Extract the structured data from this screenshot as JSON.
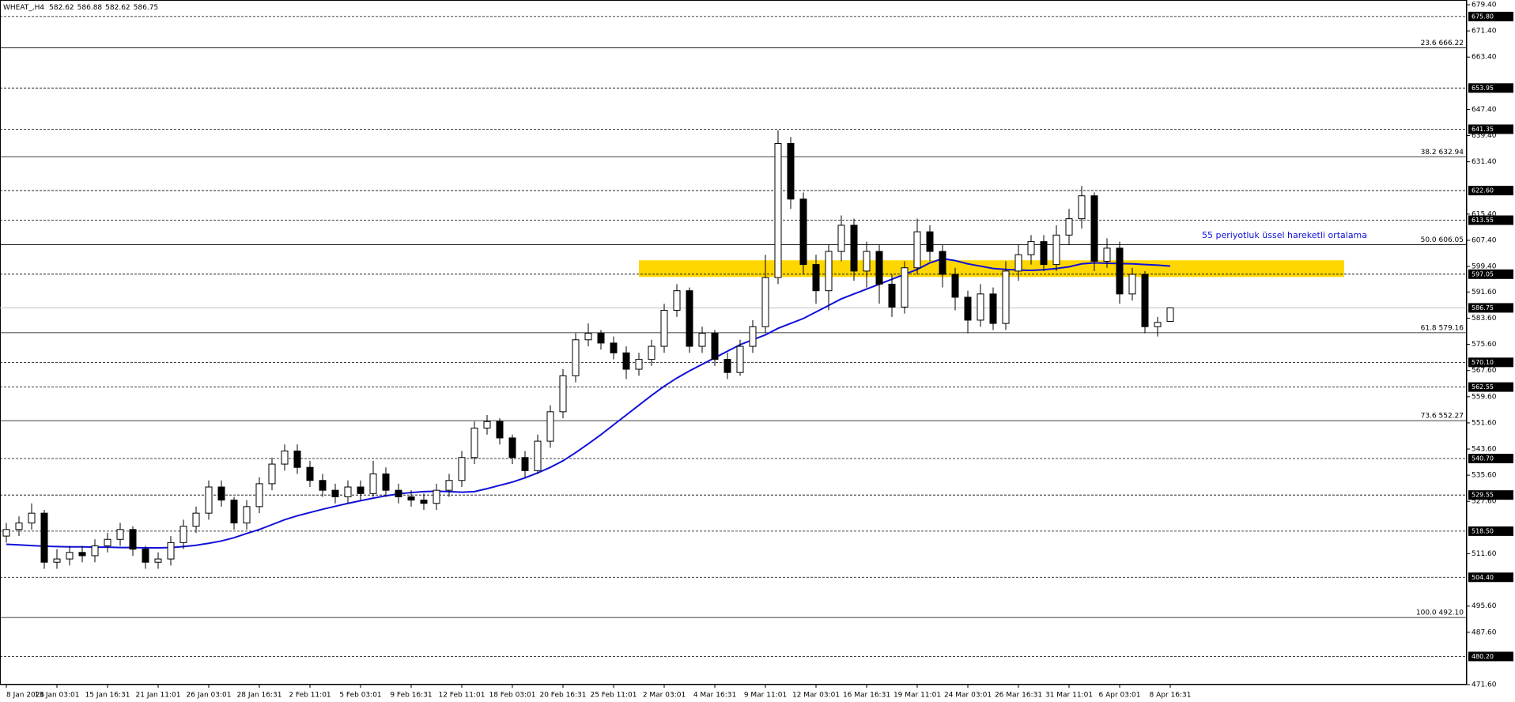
{
  "chart_data": {
    "type": "candlestick",
    "title": "WHEAT_,H4",
    "annotation": "55 periyotluk üssel hareketli ortalama",
    "categories": [
      "8 Jan 2026",
      null,
      null,
      null,
      "13 Jan 03:01",
      null,
      null,
      null,
      "15 Jan 16:31",
      null,
      null,
      null,
      "21 Jan 11:01",
      null,
      null,
      null,
      "26 Jan 03:01",
      null,
      null,
      null,
      "28 Jan 16:31",
      null,
      null,
      null,
      "2 Feb 11:01",
      null,
      null,
      null,
      "5 Feb 03:01",
      null,
      null,
      null,
      "9 Feb 16:31",
      null,
      null,
      null,
      "12 Feb 11:01",
      null,
      null,
      null,
      "18 Feb 03:01",
      null,
      null,
      null,
      "20 Feb 16:31",
      null,
      null,
      null,
      "25 Feb 11:01",
      null,
      null,
      null,
      "2 Mar 03:01",
      null,
      null,
      null,
      "4 Mar 16:31",
      null,
      null,
      null,
      "9 Mar 11:01",
      null,
      null,
      null,
      "12 Mar 03:01",
      null,
      null,
      null,
      "16 Mar 16:31",
      null,
      null,
      null,
      "19 Mar 11:01",
      null,
      null,
      null,
      "24 Mar 03:01",
      null,
      null,
      null,
      "26 Mar 16:31",
      null,
      null,
      null,
      "31 Mar 11:01",
      null,
      null,
      null,
      "6 Apr 03:01",
      null,
      null,
      null,
      "8 Apr 16:31"
    ],
    "open": [
      517,
      519,
      521,
      524,
      509,
      510,
      512,
      511,
      514,
      516,
      519,
      513,
      509,
      510,
      515,
      520,
      524,
      532,
      528,
      521,
      526,
      533,
      539,
      543,
      538,
      534,
      531,
      529,
      532,
      530,
      536,
      531,
      529,
      528,
      527,
      531,
      534,
      541,
      550,
      552,
      547,
      541,
      537,
      546,
      555,
      566,
      577,
      579,
      576,
      573,
      568,
      571,
      575,
      586,
      592,
      575,
      579,
      571,
      567,
      575,
      581,
      596,
      637,
      620,
      600,
      592,
      604,
      612,
      598,
      604,
      594,
      587,
      599,
      610,
      604,
      597,
      590,
      583,
      591,
      582,
      598,
      603,
      607,
      600,
      609,
      614,
      621,
      601,
      605,
      591,
      597,
      581,
      582.62
    ],
    "high": [
      521,
      523,
      527,
      525,
      513,
      514,
      514,
      516,
      518,
      521,
      520,
      514,
      512,
      517,
      522,
      526,
      534,
      534,
      529,
      528,
      535,
      541,
      545,
      545,
      540,
      536,
      533,
      534,
      534,
      540,
      538,
      533,
      531,
      530,
      533,
      536,
      543,
      552,
      554,
      553,
      548,
      543,
      548,
      557,
      568,
      579,
      582,
      580,
      578,
      575,
      573,
      577,
      588,
      594,
      593,
      581,
      580,
      573,
      577,
      583,
      603,
      641,
      639,
      622,
      603,
      606,
      615,
      614,
      607,
      606,
      597,
      601,
      614,
      612,
      606,
      599,
      592,
      594,
      593,
      601,
      606,
      609,
      609,
      612,
      617,
      624,
      622,
      608,
      607,
      599,
      598,
      584,
      586.88
    ],
    "low": [
      515,
      517,
      519,
      507,
      507,
      508,
      509,
      509,
      512,
      514,
      511,
      507,
      507,
      508,
      513,
      518,
      522,
      526,
      519,
      519,
      524,
      531,
      537,
      536,
      532,
      529,
      527,
      527,
      528,
      529,
      529,
      527,
      526,
      525,
      525,
      529,
      532,
      539,
      548,
      545,
      539,
      535,
      536,
      544,
      553,
      564,
      575,
      574,
      571,
      565,
      566,
      569,
      573,
      584,
      573,
      573,
      569,
      565,
      566,
      573,
      579,
      594,
      617,
      597,
      588,
      586,
      601,
      595,
      593,
      588,
      584,
      585,
      597,
      601,
      593,
      586,
      579,
      581,
      580,
      580,
      595,
      600,
      598,
      598,
      606,
      611,
      598,
      599,
      588,
      589,
      579,
      578,
      582.62
    ],
    "close": [
      519,
      521,
      524,
      509,
      510,
      512,
      511,
      514,
      516,
      519,
      513,
      509,
      510,
      515,
      520,
      524,
      532,
      528,
      521,
      526,
      533,
      539,
      543,
      538,
      534,
      531,
      529,
      532,
      530,
      536,
      531,
      529,
      528,
      527,
      531,
      534,
      541,
      550,
      552,
      547,
      541,
      537,
      546,
      555,
      566,
      577,
      579,
      576,
      573,
      568,
      571,
      575,
      586,
      592,
      575,
      579,
      571,
      567,
      575,
      581,
      596,
      637,
      620,
      600,
      592,
      604,
      612,
      598,
      604,
      594,
      587,
      599,
      610,
      604,
      597,
      590,
      583,
      591,
      582,
      598,
      603,
      607,
      600,
      609,
      614,
      621,
      601,
      605,
      591,
      597,
      581,
      582.3,
      586.75
    ],
    "ema": {
      "color": "#1010d8",
      "values": [
        514.5,
        514.3,
        514.1,
        513.9,
        513.8,
        513.7,
        513.7,
        513.6,
        513.6,
        513.5,
        513.5,
        513.4,
        513.4,
        513.5,
        513.8,
        514.2,
        514.8,
        515.5,
        516.5,
        517.8,
        519,
        520.5,
        522,
        523.2,
        524.2,
        525.2,
        526.1,
        527,
        527.8,
        528.6,
        529.3,
        529.9,
        530.3,
        530.6,
        530.7,
        530.6,
        530.4,
        530.6,
        531.5,
        532.5,
        533.5,
        534.8,
        536.3,
        538,
        540,
        542.5,
        545.2,
        548,
        551,
        554,
        557,
        560,
        562.8,
        565.3,
        567.5,
        569.5,
        571.5,
        573.5,
        575.5,
        577,
        578.5,
        580.5,
        582,
        583.5,
        585.5,
        587.5,
        589.5,
        591,
        592.5,
        594,
        595.5,
        597,
        598.5,
        600.5,
        601.8,
        601.2,
        600.2,
        599.5,
        598.8,
        598.5,
        598.3,
        598.2,
        598.4,
        598.8,
        599.3,
        600.2,
        600.5,
        600.4,
        600.3,
        600.2,
        600,
        599.8,
        599.5
      ]
    },
    "zone": {
      "low": 596.2,
      "high": 601.3,
      "color": "#ffd700"
    },
    "levels": [
      {
        "value": 675.8,
        "label": "675.80"
      },
      {
        "value": 653.95,
        "label": "653.95"
      },
      {
        "value": 641.35,
        "label": "641.35"
      },
      {
        "value": 622.6,
        "label": "622.60"
      },
      {
        "value": 613.55,
        "label": "613.55"
      },
      {
        "value": 597.05,
        "label": "597.05"
      },
      {
        "value": 570.1,
        "label": "570.10"
      },
      {
        "value": 562.55,
        "label": "562.55"
      },
      {
        "value": 540.7,
        "label": "540.70"
      },
      {
        "value": 529.55,
        "label": "529.55"
      },
      {
        "value": 518.5,
        "label": "518.50"
      },
      {
        "value": 504.4,
        "label": "504.40"
      },
      {
        "value": 480.2,
        "label": "480.20"
      }
    ],
    "current_price": {
      "value": 586.75,
      "label": "586.75"
    },
    "fib_levels": [
      {
        "value": 666.22,
        "label": "23.6 666.22"
      },
      {
        "value": 632.94,
        "label": "38.2 632.94"
      },
      {
        "value": 606.05,
        "label": "50.0 606.05"
      },
      {
        "value": 579.16,
        "label": "61.8 579.16"
      },
      {
        "value": 552.27,
        "label": "73.6 552.27"
      },
      {
        "value": 492.1,
        "label": "100.0 492.10"
      }
    ],
    "ylim": [
      471.6,
      679.4
    ],
    "yticks": [
      {
        "value": 679.4,
        "label": "679.40"
      },
      {
        "value": 671.4,
        "label": "671.40"
      },
      {
        "value": 663.4,
        "label": "663.40"
      },
      {
        "value": 647.4,
        "label": "647.40"
      },
      {
        "value": 639.4,
        "label": "639.40"
      },
      {
        "value": 631.4,
        "label": "631.40"
      },
      {
        "value": 615.4,
        "label": "615.40"
      },
      {
        "value": 607.4,
        "label": "607.40"
      },
      {
        "value": 599.4,
        "label": "599.40"
      },
      {
        "value": 591.6,
        "label": "591.60"
      },
      {
        "value": 583.6,
        "label": "583.60"
      },
      {
        "value": 575.6,
        "label": "575.60"
      },
      {
        "value": 567.6,
        "label": "567.60"
      },
      {
        "value": 559.6,
        "label": "559.60"
      },
      {
        "value": 551.6,
        "label": "551.60"
      },
      {
        "value": 543.6,
        "label": "543.60"
      },
      {
        "value": 535.6,
        "label": "535.60"
      },
      {
        "value": 527.6,
        "label": "527.60"
      },
      {
        "value": 511.6,
        "label": "511.60"
      },
      {
        "value": 495.6,
        "label": "495.60"
      },
      {
        "value": 487.6,
        "label": "487.60"
      },
      {
        "value": 471.6,
        "label": "471.60"
      }
    ]
  }
}
